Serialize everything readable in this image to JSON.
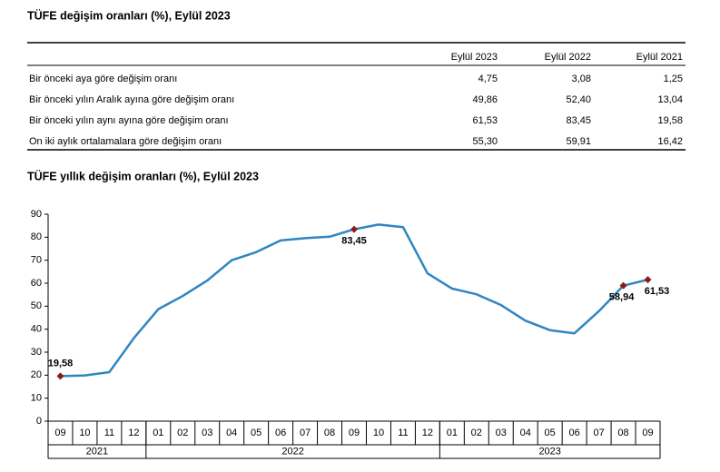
{
  "table": {
    "title": "TÜFE değişim oranları (%), Eylül 2023",
    "columns": [
      "Eylül 2023",
      "Eylül 2022",
      "Eylül 2021"
    ],
    "rows": [
      [
        "Bir önceki aya göre değişim oranı",
        "4,75",
        "3,08",
        "1,25"
      ],
      [
        "Bir önceki yılın Aralık ayına göre değişim oranı",
        "49,86",
        "52,40",
        "13,04"
      ],
      [
        "Bir önceki yılın aynı ayına göre değişim oranı",
        "61,53",
        "83,45",
        "19,58"
      ],
      [
        "On iki aylık ortalamalara göre değişim oranı",
        "55,30",
        "59,91",
        "16,42"
      ]
    ]
  },
  "chart_data": {
    "type": "line",
    "title": "TÜFE yıllık değişim oranları (%), Eylül 2023",
    "groups": [
      {
        "label": "2021",
        "categories": [
          "09",
          "10",
          "11",
          "12"
        ]
      },
      {
        "label": "2022",
        "categories": [
          "01",
          "02",
          "03",
          "04",
          "05",
          "06",
          "07",
          "08",
          "09",
          "10",
          "11",
          "12"
        ]
      },
      {
        "label": "2023",
        "categories": [
          "01",
          "02",
          "03",
          "04",
          "05",
          "06",
          "07",
          "08",
          "09"
        ]
      }
    ],
    "values": [
      19.58,
      19.89,
      21.31,
      36.08,
      48.69,
      54.44,
      61.14,
      69.97,
      73.5,
      78.62,
      79.6,
      80.21,
      83.45,
      85.51,
      84.39,
      64.27,
      57.68,
      55.18,
      50.51,
      43.68,
      39.59,
      38.21,
      47.83,
      58.94,
      61.53
    ],
    "value_labels": [
      "19,58",
      null,
      null,
      null,
      null,
      null,
      null,
      null,
      null,
      null,
      null,
      null,
      "83,45",
      null,
      null,
      null,
      null,
      null,
      null,
      null,
      null,
      null,
      null,
      "58,94",
      "61,53"
    ],
    "color": "#2e86c1",
    "marker_color": "#8b1a1a",
    "ylim": [
      0,
      90
    ],
    "yticks": [
      0,
      10,
      20,
      30,
      40,
      50,
      60,
      70,
      80,
      90
    ]
  }
}
